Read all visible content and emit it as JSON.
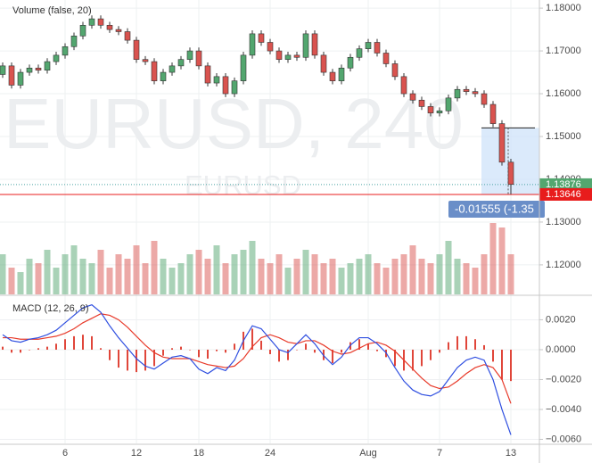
{
  "chart_data": {
    "type": "candlestick",
    "watermark": "EURUSD, 240",
    "watermark_sub": "EURUSD",
    "grid": true,
    "up_color": "#53a66f",
    "down_color": "#d9534f",
    "categories": [
      null,
      null,
      null,
      null,
      null,
      null,
      null,
      "6",
      null,
      null,
      null,
      null,
      null,
      null,
      null,
      "12",
      null,
      null,
      null,
      null,
      null,
      null,
      "18",
      null,
      null,
      null,
      null,
      null,
      null,
      null,
      "24",
      null,
      null,
      null,
      null,
      null,
      null,
      null,
      null,
      null,
      null,
      "Aug",
      null,
      null,
      null,
      null,
      null,
      null,
      null,
      "7",
      null,
      null,
      null,
      null,
      null,
      null,
      null,
      "13"
    ],
    "open": [
      1.1645,
      1.1665,
      1.162,
      1.165,
      1.166,
      1.1655,
      1.1675,
      1.169,
      1.171,
      1.1735,
      1.176,
      1.1775,
      1.176,
      1.175,
      1.1745,
      1.1725,
      1.168,
      1.1675,
      1.163,
      1.165,
      1.1665,
      1.168,
      1.17,
      1.1665,
      1.1625,
      1.164,
      1.16,
      1.163,
      1.169,
      1.174,
      1.172,
      1.17,
      1.168,
      1.169,
      1.1685,
      1.174,
      1.169,
      1.165,
      1.163,
      1.166,
      1.1685,
      1.1705,
      1.172,
      1.1695,
      1.167,
      1.164,
      1.16,
      1.1585,
      1.157,
      1.1555,
      1.156,
      1.159,
      1.161,
      1.1605,
      1.16,
      1.1575,
      1.153,
      1.144
    ],
    "high": [
      1.1673,
      1.1673,
      1.1658,
      1.1668,
      1.1668,
      1.1683,
      1.1698,
      1.1718,
      1.1743,
      1.1768,
      1.1783,
      1.1783,
      1.1768,
      1.1758,
      1.1753,
      1.1733,
      1.1688,
      1.1683,
      1.1658,
      1.1673,
      1.1688,
      1.1708,
      1.1708,
      1.1673,
      1.1648,
      1.1648,
      1.1638,
      1.1698,
      1.1748,
      1.1748,
      1.1728,
      1.1708,
      1.1698,
      1.1698,
      1.1748,
      1.1748,
      1.1698,
      1.1658,
      1.1668,
      1.1693,
      1.1713,
      1.1728,
      1.1728,
      1.1703,
      1.1678,
      1.1648,
      1.1608,
      1.1593,
      1.1578,
      1.1568,
      1.1598,
      1.1618,
      1.1618,
      1.1613,
      1.1608,
      1.1583,
      1.1538,
      1.1448
    ],
    "low": [
      1.1637,
      1.1612,
      1.1612,
      1.1642,
      1.1647,
      1.1647,
      1.1667,
      1.1682,
      1.1702,
      1.1727,
      1.1752,
      1.1752,
      1.1742,
      1.1737,
      1.1717,
      1.1672,
      1.1667,
      1.1622,
      1.1622,
      1.1642,
      1.1657,
      1.1672,
      1.1657,
      1.1617,
      1.1617,
      1.1592,
      1.1592,
      1.1622,
      1.1682,
      1.1712,
      1.1692,
      1.1672,
      1.1672,
      1.1677,
      1.1677,
      1.1682,
      1.1642,
      1.1622,
      1.1622,
      1.1652,
      1.1677,
      1.1697,
      1.1687,
      1.1662,
      1.1632,
      1.1592,
      1.1577,
      1.1562,
      1.1547,
      1.1547,
      1.1552,
      1.1582,
      1.1597,
      1.1592,
      1.1567,
      1.1522,
      1.1432,
      1.1365
    ],
    "close": [
      1.1665,
      1.162,
      1.165,
      1.166,
      1.1655,
      1.1675,
      1.169,
      1.171,
      1.1735,
      1.176,
      1.1775,
      1.176,
      1.175,
      1.1745,
      1.1725,
      1.168,
      1.1675,
      1.163,
      1.165,
      1.1665,
      1.168,
      1.17,
      1.1665,
      1.1625,
      1.164,
      1.16,
      1.163,
      1.169,
      1.174,
      1.172,
      1.17,
      1.168,
      1.169,
      1.1685,
      1.174,
      1.169,
      1.165,
      1.163,
      1.166,
      1.1685,
      1.1705,
      1.172,
      1.1695,
      1.167,
      1.164,
      1.16,
      1.1585,
      1.157,
      1.1555,
      1.156,
      1.159,
      1.161,
      1.1605,
      1.16,
      1.1575,
      1.153,
      1.144,
      1.1388
    ],
    "ylim": [
      1.1131,
      1.1819
    ],
    "yticks": [
      {
        "value": 1.18,
        "label": "1.18000"
      },
      {
        "value": 1.17,
        "label": "1.17000"
      },
      {
        "value": 1.16,
        "label": "1.16000"
      },
      {
        "value": 1.15,
        "label": "1.15000"
      },
      {
        "value": 1.14,
        "label": "1.14000"
      },
      {
        "value": 1.13,
        "label": "1.13000"
      },
      {
        "value": 1.12,
        "label": "1.12000"
      }
    ],
    "volume": {
      "title": "Volume (false, 20)",
      "vlim": [
        0,
        100
      ],
      "values": [
        45,
        30,
        25,
        40,
        35,
        50,
        30,
        45,
        55,
        40,
        35,
        50,
        30,
        45,
        40,
        55,
        35,
        60,
        40,
        30,
        35,
        45,
        50,
        40,
        55,
        35,
        45,
        50,
        60,
        40,
        35,
        45,
        30,
        40,
        50,
        45,
        35,
        40,
        30,
        35,
        40,
        45,
        35,
        30,
        40,
        45,
        55,
        40,
        35,
        45,
        60,
        40,
        35,
        30,
        45,
        80,
        75,
        45
      ]
    },
    "last_price": {
      "value": 1.13876,
      "label": "1.13876",
      "color": "#53a66f"
    },
    "alert_line": {
      "value": 1.13646,
      "label": "1.13646",
      "color": "#e81c1c"
    },
    "measure": {
      "from": 1.15201,
      "to": 1.13646,
      "label": "-0.01555 (-1.35"
    },
    "macd": {
      "title": "MACD (12, 26, 9)",
      "ylim": [
        -0.00627,
        0.00352
      ],
      "yticks": [
        {
          "value": 0.002,
          "label": "0.0020"
        },
        {
          "value": 0,
          "label": "0.0000"
        },
        {
          "value": -0.002,
          "label": "−0.0020"
        },
        {
          "value": -0.004,
          "label": "−0.0040"
        },
        {
          "value": -0.006,
          "label": "−0.0060"
        }
      ],
      "macd_line": {
        "color": "#2f4fe0",
        "values": [
          0.001,
          0.0006,
          0.0005,
          0.0007,
          0.0008,
          0.001,
          0.0013,
          0.0018,
          0.0023,
          0.0028,
          0.003,
          0.0025,
          0.0016,
          0.0008,
          0.0001,
          -0.0006,
          -0.0011,
          -0.0013,
          -0.0009,
          -0.0005,
          -0.0004,
          -0.0006,
          -0.0013,
          -0.0016,
          -0.0012,
          -0.0014,
          -0.0007,
          0.0006,
          0.0016,
          0.0014,
          0.0007,
          0.0,
          -0.0002,
          0.0004,
          0.001,
          0.0004,
          -0.0004,
          -0.001,
          -0.0005,
          0.0003,
          0.0008,
          0.0008,
          0.0004,
          -0.0002,
          -0.0012,
          -0.0021,
          -0.0027,
          -0.003,
          -0.0031,
          -0.0028,
          -0.002,
          -0.0012,
          -0.0007,
          -0.0005,
          -0.0007,
          -0.002,
          -0.004,
          -0.0057
        ]
      },
      "signal_line": {
        "color": "#e83a2a",
        "values": [
          0.0008,
          0.0008,
          0.0007,
          0.0007,
          0.0007,
          0.0008,
          0.0009,
          0.0011,
          0.0014,
          0.0018,
          0.0021,
          0.0024,
          0.0023,
          0.002,
          0.0015,
          0.0009,
          0.0003,
          -0.0002,
          -0.0005,
          -0.0006,
          -0.0006,
          -0.0006,
          -0.0008,
          -0.001,
          -0.0011,
          -0.0012,
          -0.0011,
          -0.0006,
          0.0002,
          0.0008,
          0.001,
          0.0008,
          0.0005,
          0.0004,
          0.0006,
          0.0006,
          0.0003,
          -0.0001,
          -0.0003,
          -0.0002,
          0.0001,
          0.0004,
          0.0005,
          0.0003,
          -0.0001,
          -0.0007,
          -0.0013,
          -0.0019,
          -0.0024,
          -0.0026,
          -0.0025,
          -0.0021,
          -0.0016,
          -0.0012,
          -0.001,
          -0.0012,
          -0.002,
          -0.0036
        ]
      },
      "histogram": {
        "color": "#e0463a",
        "values": [
          0.0002,
          -0.0002,
          -0.0002,
          0,
          0.0001,
          0.0002,
          0.0004,
          0.0007,
          0.0009,
          0.001,
          0.0009,
          0.0001,
          -0.0007,
          -0.0012,
          -0.0014,
          -0.0015,
          -0.0014,
          -0.0011,
          -0.0004,
          0.0001,
          0.0002,
          0,
          -0.0005,
          -0.0006,
          -0.0001,
          -0.0002,
          0.0004,
          0.0012,
          0.0014,
          0.0006,
          -0.0003,
          -0.0008,
          -0.0007,
          0,
          0.0004,
          -0.0002,
          -0.0007,
          -0.0009,
          -0.0002,
          0.0005,
          0.0007,
          0.0004,
          -0.0001,
          -0.0005,
          -0.0011,
          -0.0014,
          -0.0014,
          -0.0011,
          -0.0007,
          -0.0002,
          0.0005,
          0.0009,
          0.0009,
          0.0007,
          0.0003,
          -0.0008,
          -0.002,
          -0.0021
        ]
      }
    }
  }
}
